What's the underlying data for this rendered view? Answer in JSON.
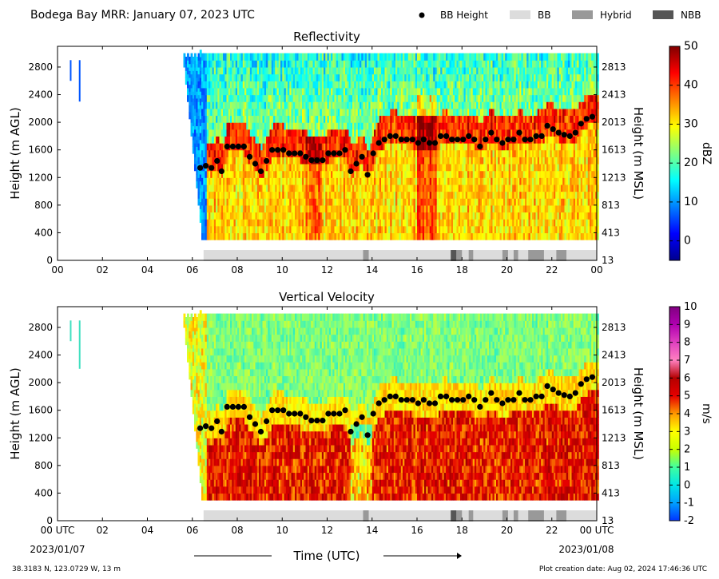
{
  "header": {
    "title": "Bodega Bay MRR:  January 07, 2023 UTC",
    "legend": [
      {
        "label": "BB Height",
        "kind": "dot",
        "color": "#000000"
      },
      {
        "label": "BB",
        "kind": "box",
        "color": "#dcdcdc"
      },
      {
        "label": "Hybrid",
        "kind": "box",
        "color": "#999999"
      },
      {
        "label": "NBB",
        "kind": "box",
        "color": "#555555"
      }
    ]
  },
  "footer": {
    "location": "38.3183 N, 123.0729 W, 13 m",
    "creation": "Plot creation date: Aug 02, 2024 17:46:36 UTC",
    "x_axis_label": "Time (UTC)",
    "start_date": "2023/01/07",
    "end_date": "2023/01/08"
  },
  "chart_data": [
    {
      "type": "heatmap",
      "title": "Reflectivity",
      "ylabel": "Height (m AGL)",
      "ylabel_right": "Height (m MSL)",
      "colorbar_label": "dBZ",
      "colorbar_range": [
        -5,
        50
      ],
      "colorbar_ticks": [
        "0",
        "10",
        "20",
        "30",
        "40",
        "50"
      ],
      "colormap": "jet",
      "x_ticks": [
        "00",
        "02",
        "04",
        "06",
        "08",
        "10",
        "12",
        "14",
        "16",
        "18",
        "20",
        "22",
        "00"
      ],
      "y_ticks": [
        "0",
        "400",
        "800",
        "1200",
        "1600",
        "2000",
        "2400",
        "2800"
      ],
      "y_ticks_right": [
        "13",
        "413",
        "813",
        "1213",
        "1613",
        "2013",
        "2413",
        "2813"
      ],
      "xlim": [
        0,
        24
      ],
      "ylim": [
        0,
        3100
      ]
    },
    {
      "type": "heatmap",
      "title": "Vertical Velocity",
      "ylabel": "Height (m AGL)",
      "ylabel_right": "Height (m MSL)",
      "colorbar_label": "m/s",
      "colorbar_range": [
        -2,
        10
      ],
      "colorbar_ticks": [
        "-2",
        "-1",
        "0",
        "1",
        "2",
        "3",
        "4",
        "5",
        "6",
        "7",
        "8",
        "9",
        "10"
      ],
      "x_ticks": [
        "00 UTC",
        "02",
        "04",
        "06",
        "08",
        "10",
        "12",
        "14",
        "16",
        "18",
        "20",
        "22",
        "00 UTC"
      ],
      "y_ticks": [
        "0",
        "400",
        "800",
        "1200",
        "1600",
        "2000",
        "2400",
        "2800"
      ],
      "y_ticks_right": [
        "13",
        "413",
        "813",
        "1213",
        "1613",
        "2013",
        "2413",
        "2813"
      ],
      "xlim": [
        0,
        24
      ],
      "ylim": [
        0,
        3100
      ]
    }
  ],
  "bb_height": {
    "times": [
      6.35,
      6.6,
      6.85,
      7.1,
      7.3,
      7.55,
      7.8,
      8.05,
      8.3,
      8.55,
      8.8,
      9.05,
      9.3,
      9.55,
      9.8,
      10.05,
      10.3,
      10.55,
      10.8,
      11.05,
      11.3,
      11.55,
      11.8,
      12.05,
      12.3,
      12.55,
      12.8,
      13.05,
      13.3,
      13.55,
      13.8,
      14.05,
      14.3,
      14.55,
      14.8,
      15.05,
      15.3,
      15.55,
      15.8,
      16.05,
      16.3,
      16.55,
      16.8,
      17.05,
      17.3,
      17.55,
      17.8,
      18.05,
      18.3,
      18.55,
      18.8,
      19.05,
      19.3,
      19.55,
      19.8,
      20.05,
      20.3,
      20.55,
      20.8,
      21.05,
      21.3,
      21.55,
      21.8,
      22.05,
      22.3,
      22.55,
      22.8,
      23.05,
      23.3,
      23.55,
      23.8
    ],
    "heights": [
      1340,
      1370,
      1340,
      1440,
      1290,
      1650,
      1650,
      1650,
      1650,
      1500,
      1400,
      1290,
      1440,
      1600,
      1600,
      1600,
      1550,
      1550,
      1550,
      1500,
      1450,
      1450,
      1450,
      1550,
      1550,
      1550,
      1600,
      1290,
      1400,
      1500,
      1240,
      1550,
      1700,
      1750,
      1800,
      1800,
      1750,
      1750,
      1750,
      1700,
      1750,
      1700,
      1700,
      1800,
      1800,
      1750,
      1750,
      1750,
      1800,
      1750,
      1650,
      1750,
      1850,
      1750,
      1700,
      1750,
      1750,
      1850,
      1750,
      1750,
      1800,
      1800,
      1950,
      1900,
      1850,
      1820,
      1800,
      1850,
      1980,
      2050,
      2080
    ]
  },
  "classification": {
    "bb_range": [
      6.5,
      24
    ],
    "hybrid": [
      [
        13.6,
        13.85
      ],
      [
        17.75,
        18.0
      ],
      [
        18.3,
        18.5
      ],
      [
        19.8,
        20.05
      ],
      [
        20.3,
        20.5
      ],
      [
        20.95,
        21.65
      ],
      [
        22.2,
        22.65
      ]
    ],
    "nbb": [
      [
        17.5,
        17.75
      ]
    ]
  }
}
